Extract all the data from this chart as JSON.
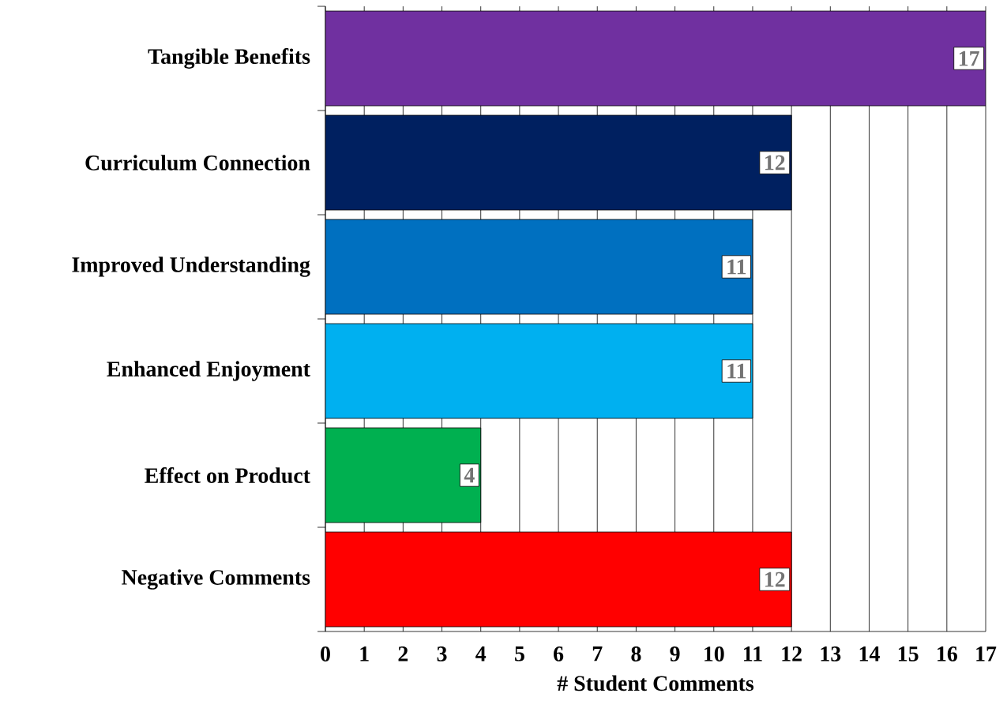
{
  "chart_data": {
    "type": "bar",
    "orientation": "horizontal",
    "xlabel": "# Student Comments",
    "categories": [
      "Tangible Benefits",
      "Curriculum Connection",
      "Improved Understanding",
      "Enhanced Enjoyment",
      "Effect on Product",
      "Negative Comments"
    ],
    "values": [
      17,
      12,
      11,
      11,
      4,
      12
    ],
    "colors": [
      "#7030a0",
      "#002060",
      "#0070c0",
      "#00b0f0",
      "#00b050",
      "#ff0000"
    ],
    "xlim": [
      0,
      17
    ],
    "xticks": [
      0,
      1,
      2,
      3,
      4,
      5,
      6,
      7,
      8,
      9,
      10,
      11,
      12,
      13,
      14,
      15,
      16,
      17
    ],
    "grid": "x",
    "data_labels": true
  }
}
